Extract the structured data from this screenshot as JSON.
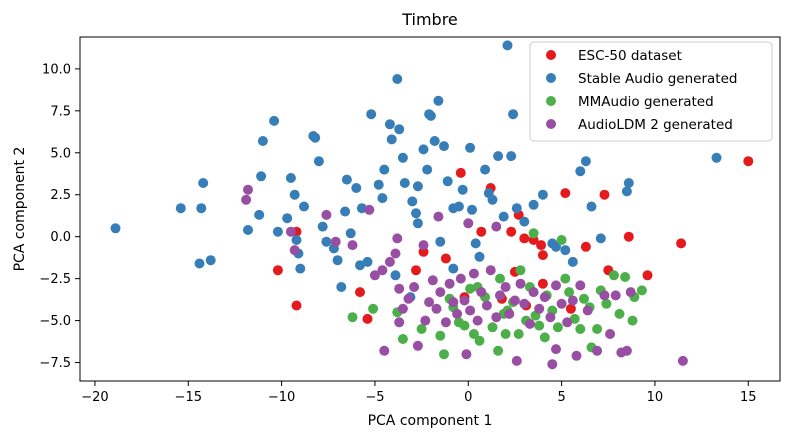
{
  "chart_data": {
    "type": "scatter",
    "title": "Timbre",
    "xlabel": "PCA component 1",
    "ylabel": "PCA component 2",
    "xlim": [
      -20.8,
      16.7
    ],
    "ylim": [
      -8.6,
      11.9
    ],
    "xticks": [
      -20,
      -15,
      -10,
      -5,
      0,
      5,
      10,
      15
    ],
    "xtick_labels": [
      "−20",
      "−15",
      "−10",
      "−5",
      "0",
      "5",
      "10",
      "15"
    ],
    "yticks": [
      -7.5,
      -5.0,
      -2.5,
      0.0,
      2.5,
      5.0,
      7.5,
      10.0
    ],
    "ytick_labels": [
      "−7.5",
      "−5.0",
      "−2.5",
      "0.0",
      "2.5",
      "5.0",
      "7.5",
      "10.0"
    ],
    "grid": false,
    "legend_position": "top-right",
    "series": [
      {
        "name": "ESC-50 dataset",
        "color": "#e41a1c",
        "points": [
          [
            -9.2,
            0.3
          ],
          [
            -10.2,
            -2.0
          ],
          [
            -9.2,
            -4.1
          ],
          [
            -5.4,
            -4.9
          ],
          [
            -5.8,
            -3.3
          ],
          [
            -1.2,
            -1.3
          ],
          [
            -2.8,
            -2.0
          ],
          [
            -2.4,
            -0.9
          ],
          [
            -0.4,
            3.8
          ],
          [
            0.7,
            0.3
          ],
          [
            1.2,
            2.9
          ],
          [
            2.3,
            0.3
          ],
          [
            2.7,
            1.3
          ],
          [
            3.0,
            -0.1
          ],
          [
            3.5,
            -0.2
          ],
          [
            3.9,
            -0.5
          ],
          [
            4.0,
            -1.1
          ],
          [
            5.2,
            2.6
          ],
          [
            6.3,
            -0.6
          ],
          [
            7.5,
            -2.0
          ],
          [
            7.3,
            2.5
          ],
          [
            8.6,
            0.0
          ],
          [
            9.6,
            -2.3
          ],
          [
            11.4,
            -0.4
          ],
          [
            15.0,
            4.5
          ],
          [
            4.0,
            -2.8
          ],
          [
            2.5,
            -2.1
          ],
          [
            -0.2,
            -3.6
          ],
          [
            1.8,
            -3.7
          ],
          [
            3.1,
            -4.1
          ],
          [
            5.5,
            -4.3
          ]
        ]
      },
      {
        "name": "Stable Audio generated",
        "color": "#377eb8",
        "points": [
          [
            -18.9,
            0.5
          ],
          [
            -15.4,
            1.7
          ],
          [
            -14.4,
            -1.6
          ],
          [
            -14.2,
            3.2
          ],
          [
            -14.3,
            1.7
          ],
          [
            -13.8,
            -1.4
          ],
          [
            -11.8,
            0.4
          ],
          [
            -11.2,
            1.3
          ],
          [
            -11.1,
            3.6
          ],
          [
            -11.0,
            5.7
          ],
          [
            -10.4,
            6.9
          ],
          [
            -10.2,
            0.3
          ],
          [
            -9.7,
            1.1
          ],
          [
            -9.5,
            3.5
          ],
          [
            -9.3,
            2.5
          ],
          [
            -9.2,
            -0.2
          ],
          [
            -9.1,
            -1.0
          ],
          [
            -9.0,
            -1.9
          ],
          [
            -8.8,
            1.8
          ],
          [
            -8.3,
            6.0
          ],
          [
            -8.2,
            5.9
          ],
          [
            -8.0,
            4.5
          ],
          [
            -7.8,
            0.6
          ],
          [
            -7.6,
            -0.3
          ],
          [
            -7.2,
            -0.7
          ],
          [
            -7.0,
            -1.4
          ],
          [
            -6.8,
            -3.0
          ],
          [
            -6.6,
            1.5
          ],
          [
            -6.5,
            3.4
          ],
          [
            -6.3,
            0.2
          ],
          [
            -6.0,
            2.9
          ],
          [
            -5.7,
            1.7
          ],
          [
            -5.8,
            -1.7
          ],
          [
            -5.4,
            -1.5
          ],
          [
            -5.2,
            7.3
          ],
          [
            -4.8,
            3.1
          ],
          [
            -4.6,
            2.3
          ],
          [
            -4.5,
            4.0
          ],
          [
            -4.2,
            6.7
          ],
          [
            -4.1,
            5.8
          ],
          [
            -3.9,
            -2.3
          ],
          [
            -3.8,
            9.4
          ],
          [
            -3.7,
            6.4
          ],
          [
            -3.5,
            4.7
          ],
          [
            -3.4,
            3.2
          ],
          [
            -3.0,
            2.1
          ],
          [
            -2.8,
            1.4
          ],
          [
            -2.7,
            3.0
          ],
          [
            -2.7,
            0.8
          ],
          [
            -2.4,
            5.2
          ],
          [
            -2.2,
            4.0
          ],
          [
            -2.0,
            7.2
          ],
          [
            -2.1,
            7.3
          ],
          [
            -1.8,
            5.7
          ],
          [
            -1.6,
            8.1
          ],
          [
            -1.5,
            -0.3
          ],
          [
            -1.3,
            5.4
          ],
          [
            -1.1,
            3.3
          ],
          [
            -0.8,
            1.7
          ],
          [
            -0.8,
            -1.9
          ],
          [
            -0.5,
            1.8
          ],
          [
            -0.3,
            2.8
          ],
          [
            0.1,
            5.3
          ],
          [
            0.2,
            1.6
          ],
          [
            0.4,
            -0.4
          ],
          [
            0.6,
            -1.2
          ],
          [
            0.9,
            4.0
          ],
          [
            1.1,
            2.6
          ],
          [
            1.3,
            2.2
          ],
          [
            1.6,
            4.8
          ],
          [
            1.9,
            1.2
          ],
          [
            2.1,
            11.4
          ],
          [
            2.4,
            7.3
          ],
          [
            2.3,
            4.8
          ],
          [
            2.6,
            1.7
          ],
          [
            3.0,
            0.9
          ],
          [
            3.5,
            1.9
          ],
          [
            4.0,
            2.5
          ],
          [
            4.5,
            -0.4
          ],
          [
            4.7,
            -0.6
          ],
          [
            5.2,
            -0.8
          ],
          [
            5.6,
            -1.5
          ],
          [
            6.0,
            3.9
          ],
          [
            6.3,
            4.5
          ],
          [
            6.6,
            1.8
          ],
          [
            7.1,
            -0.1
          ],
          [
            8.6,
            3.2
          ],
          [
            8.5,
            2.7
          ],
          [
            13.3,
            4.7
          ],
          [
            -3.1,
            -3.6
          ]
        ]
      },
      {
        "name": "MMAudio generated",
        "color": "#4daf4a",
        "points": [
          [
            -6.2,
            -4.8
          ],
          [
            -5.1,
            -4.3
          ],
          [
            -3.8,
            -4.5
          ],
          [
            -2.5,
            -5.5
          ],
          [
            -1.5,
            -5.9
          ],
          [
            -1.3,
            -7.0
          ],
          [
            -1.0,
            -3.7
          ],
          [
            -0.5,
            -5.1
          ],
          [
            -0.2,
            -5.3
          ],
          [
            0.1,
            -3.1
          ],
          [
            0.3,
            -5.8
          ],
          [
            0.6,
            -6.2
          ],
          [
            0.9,
            -3.6
          ],
          [
            1.3,
            -5.4
          ],
          [
            1.6,
            -6.8
          ],
          [
            1.9,
            -4.6
          ],
          [
            2.1,
            -4.4
          ],
          [
            2.4,
            -3.9
          ],
          [
            2.7,
            -5.8
          ],
          [
            3.1,
            -5.0
          ],
          [
            3.3,
            -3.0
          ],
          [
            3.6,
            -4.7
          ],
          [
            3.8,
            -5.3
          ],
          [
            4.2,
            -3.5
          ],
          [
            4.5,
            -4.4
          ],
          [
            4.8,
            -5.4
          ],
          [
            5.0,
            -0.2
          ],
          [
            5.2,
            -2.5
          ],
          [
            5.4,
            -3.3
          ],
          [
            5.7,
            -4.9
          ],
          [
            6.0,
            -5.5
          ],
          [
            6.2,
            -3.7
          ],
          [
            6.5,
            -4.2
          ],
          [
            6.9,
            -5.5
          ],
          [
            7.1,
            -3.2
          ],
          [
            7.4,
            -4.0
          ],
          [
            7.8,
            -2.3
          ],
          [
            8.1,
            -4.6
          ],
          [
            8.4,
            -2.4
          ],
          [
            8.8,
            -5.0
          ],
          [
            8.9,
            -3.6
          ],
          [
            9.3,
            -3.2
          ],
          [
            3.5,
            0.2
          ],
          [
            2.8,
            -2.0
          ],
          [
            1.7,
            -2.5
          ],
          [
            0.5,
            -3.0
          ],
          [
            -0.8,
            -4.2
          ],
          [
            2.0,
            -5.8
          ],
          [
            4.1,
            -6.0
          ],
          [
            6.6,
            -6.6
          ],
          [
            -3.5,
            -6.1
          ]
        ]
      },
      {
        "name": "AudioLDM 2 generated",
        "color": "#984ea3",
        "points": [
          [
            -11.8,
            2.8
          ],
          [
            -11.9,
            2.2
          ],
          [
            -9.5,
            0.3
          ],
          [
            -9.3,
            -0.8
          ],
          [
            -7.6,
            1.3
          ],
          [
            -7.1,
            -0.3
          ],
          [
            -6.2,
            -0.5
          ],
          [
            -5.3,
            1.6
          ],
          [
            -5.0,
            -2.3
          ],
          [
            -4.6,
            -2.0
          ],
          [
            -4.2,
            -1.5
          ],
          [
            -3.9,
            -1.0
          ],
          [
            -3.7,
            -3.1
          ],
          [
            -3.7,
            -5.1
          ],
          [
            -3.5,
            -4.3
          ],
          [
            -3.2,
            -3.7
          ],
          [
            -2.9,
            -3.0
          ],
          [
            -2.7,
            -6.5
          ],
          [
            -2.3,
            -5.0
          ],
          [
            -2.1,
            -3.9
          ],
          [
            -1.9,
            -2.6
          ],
          [
            -1.7,
            -4.3
          ],
          [
            -1.5,
            -3.3
          ],
          [
            -1.2,
            -5.1
          ],
          [
            -1.0,
            -2.8
          ],
          [
            -0.8,
            -3.9
          ],
          [
            -0.6,
            -4.6
          ],
          [
            -0.4,
            -2.5
          ],
          [
            -0.2,
            -3.8
          ],
          [
            0.1,
            -4.4
          ],
          [
            0.3,
            -2.2
          ],
          [
            0.5,
            -5.0
          ],
          [
            0.7,
            -3.3
          ],
          [
            1.0,
            -4.1
          ],
          [
            1.2,
            -2.0
          ],
          [
            1.5,
            -4.8
          ],
          [
            1.7,
            -3.5
          ],
          [
            2.0,
            -3.0
          ],
          [
            2.2,
            -4.6
          ],
          [
            2.5,
            -3.8
          ],
          [
            2.8,
            -2.8
          ],
          [
            3.0,
            -4.0
          ],
          [
            3.3,
            -5.2
          ],
          [
            3.5,
            -3.3
          ],
          [
            3.8,
            -4.3
          ],
          [
            4.1,
            -3.6
          ],
          [
            4.4,
            -4.8
          ],
          [
            4.7,
            -2.9
          ],
          [
            5.0,
            -4.0
          ],
          [
            5.3,
            -5.1
          ],
          [
            5.6,
            -3.8
          ],
          [
            6.0,
            -2.9
          ],
          [
            6.4,
            -4.4
          ],
          [
            6.9,
            -6.8
          ],
          [
            7.3,
            -3.5
          ],
          [
            7.6,
            -5.8
          ],
          [
            8.2,
            -6.9
          ],
          [
            8.5,
            -6.8
          ],
          [
            8.7,
            -3.3
          ],
          [
            11.5,
            -7.4
          ],
          [
            -3.8,
            -0.1
          ],
          [
            -2.4,
            -0.5
          ],
          [
            -1.6,
            1.2
          ],
          [
            0.0,
            0.8
          ],
          [
            1.5,
            0.6
          ],
          [
            2.6,
            -7.4
          ],
          [
            4.5,
            -7.6
          ],
          [
            4.7,
            -6.7
          ],
          [
            5.8,
            -7.1
          ],
          [
            7.9,
            -3.5
          ],
          [
            -4.5,
            -6.8
          ],
          [
            -0.1,
            -7.0
          ]
        ]
      }
    ]
  }
}
